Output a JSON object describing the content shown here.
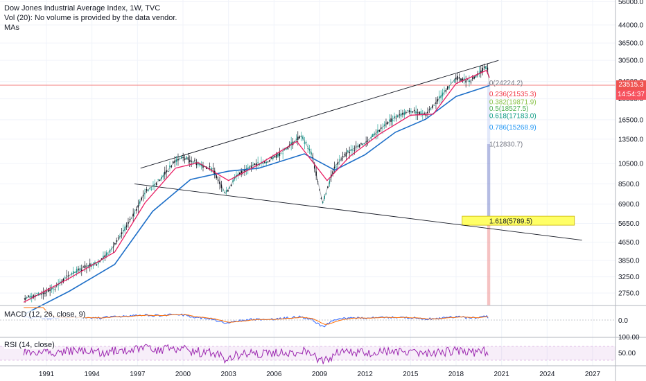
{
  "header": {
    "title": "Dow Jones Industrial Average Index, 1W, TVC",
    "volume_note": "Vol (20): No volume is provided by the data vendor.",
    "mas_label": "MAs"
  },
  "indicators": {
    "macd_label": "MACD (12, 26, close, 9)",
    "rsi_label": "RSI (14, close)"
  },
  "price_badges": {
    "last_price": "23515.3",
    "countdown": "14:54:37"
  },
  "colors": {
    "fast_ma": "#e91e63",
    "slow_ma": "#1e6fc8",
    "price": "#131722",
    "up": "#26a69a",
    "down": "#ef5350",
    "rsi": "#9c27b0",
    "fib_highlight": "#ffff66"
  },
  "chart_data": {
    "type": "line",
    "scale": "log",
    "x_ticks": [
      "1991",
      "1994",
      "1997",
      "2000",
      "2003",
      "2006",
      "2009",
      "2012",
      "2015",
      "2018",
      "2021",
      "2024",
      "2027"
    ],
    "y_ticks": [
      "56000.0",
      "44000.0",
      "36500.0",
      "30500.0",
      "24500.0",
      "20500.0",
      "16500.0",
      "13500.0",
      "10500.0",
      "8500.0",
      "6900.0",
      "5650.0",
      "4650.0",
      "3850.0",
      "3250.0",
      "2750.0"
    ],
    "series": [
      {
        "x": [
          1989.5,
          1990.5,
          1991.5,
          1992.5,
          1993.5,
          1994.5,
          1995.5,
          1996.5,
          1997.5,
          1998.5,
          1999.5,
          2000.0,
          2001.0,
          2002.0,
          2002.8,
          2003.5,
          2004.5,
          2005.5,
          2006.5,
          2007.8,
          2008.5,
          2009.2,
          2010.0,
          2011.0,
          2012.0,
          2013.0,
          2014.0,
          2015.0,
          2016.0,
          2017.0,
          2018.0,
          2018.9,
          2019.5,
          2020.05,
          2020.2
        ],
        "y": [
          2600,
          2700,
          2900,
          3300,
          3600,
          3800,
          4500,
          5800,
          7800,
          8900,
          10800,
          11200,
          10500,
          9800,
          7700,
          9200,
          10300,
          10600,
          11800,
          14000,
          11500,
          7000,
          10200,
          12000,
          13000,
          15000,
          17000,
          18000,
          17500,
          21000,
          25500,
          24500,
          26500,
          29000,
          23515
        ]
      },
      {
        "x": [
          1989.5,
          1992.5,
          1995.5,
          1997.5,
          1999.5,
          2001.0,
          2003.0,
          2005.0,
          2007.5,
          2009.5,
          2011.0,
          2013.0,
          2015.0,
          2016.5,
          2018.0,
          2020.0,
          2020.2
        ],
        "y": [
          2500,
          3200,
          4200,
          7000,
          10000,
          10600,
          8800,
          10400,
          13200,
          8800,
          11300,
          14300,
          17300,
          17500,
          24000,
          27500,
          25500
        ]
      },
      {
        "x": [
          1989.5,
          1992.5,
          1995.5,
          1998.0,
          2000.5,
          2003.0,
          2005.0,
          2008.0,
          2010.0,
          2012.0,
          2014.0,
          2016.0,
          2018.0,
          2020.2
        ],
        "y": [
          2200,
          2800,
          3700,
          6400,
          8900,
          9700,
          10000,
          11600,
          9800,
          11500,
          14500,
          16600,
          21000,
          23500
        ]
      }
    ],
    "fib_levels": [
      {
        "label": "0(24224.2)",
        "value": 24224.2,
        "color": "#787b86"
      },
      {
        "label": "0.236(21535.3)",
        "value": 21535.3,
        "color": "#f23645"
      },
      {
        "label": "0.382(19871.9)",
        "value": 19871.9,
        "color": "#8bc34a"
      },
      {
        "label": "0.5(18527.5)",
        "value": 18527.5,
        "color": "#4caf50"
      },
      {
        "label": "0.618(17183.0)",
        "value": 17183.0,
        "color": "#089981"
      },
      {
        "label": "0.786(15268.9)",
        "value": 15268.9,
        "color": "#2196f3"
      },
      {
        "label": "1(12830.7)",
        "value": 12830.7,
        "color": "#787b86"
      },
      {
        "label": "1.618(5789.5)",
        "value": 5789.5,
        "color": "#131722"
      }
    ],
    "channel_upper": {
      "x": [
        1997.2,
        2020.8
      ],
      "y": [
        10000,
        30500
      ]
    },
    "channel_lower": {
      "x": [
        1996.8,
        2026.3
      ],
      "y": [
        8500,
        4750
      ]
    },
    "macd": {
      "label": "MACD (12, 26, close, 9)",
      "y_ticks": [
        "0.0"
      ]
    },
    "rsi": {
      "label": "RSI (14, close)",
      "y_ticks": [
        "100.00",
        "50.00"
      ]
    }
  }
}
